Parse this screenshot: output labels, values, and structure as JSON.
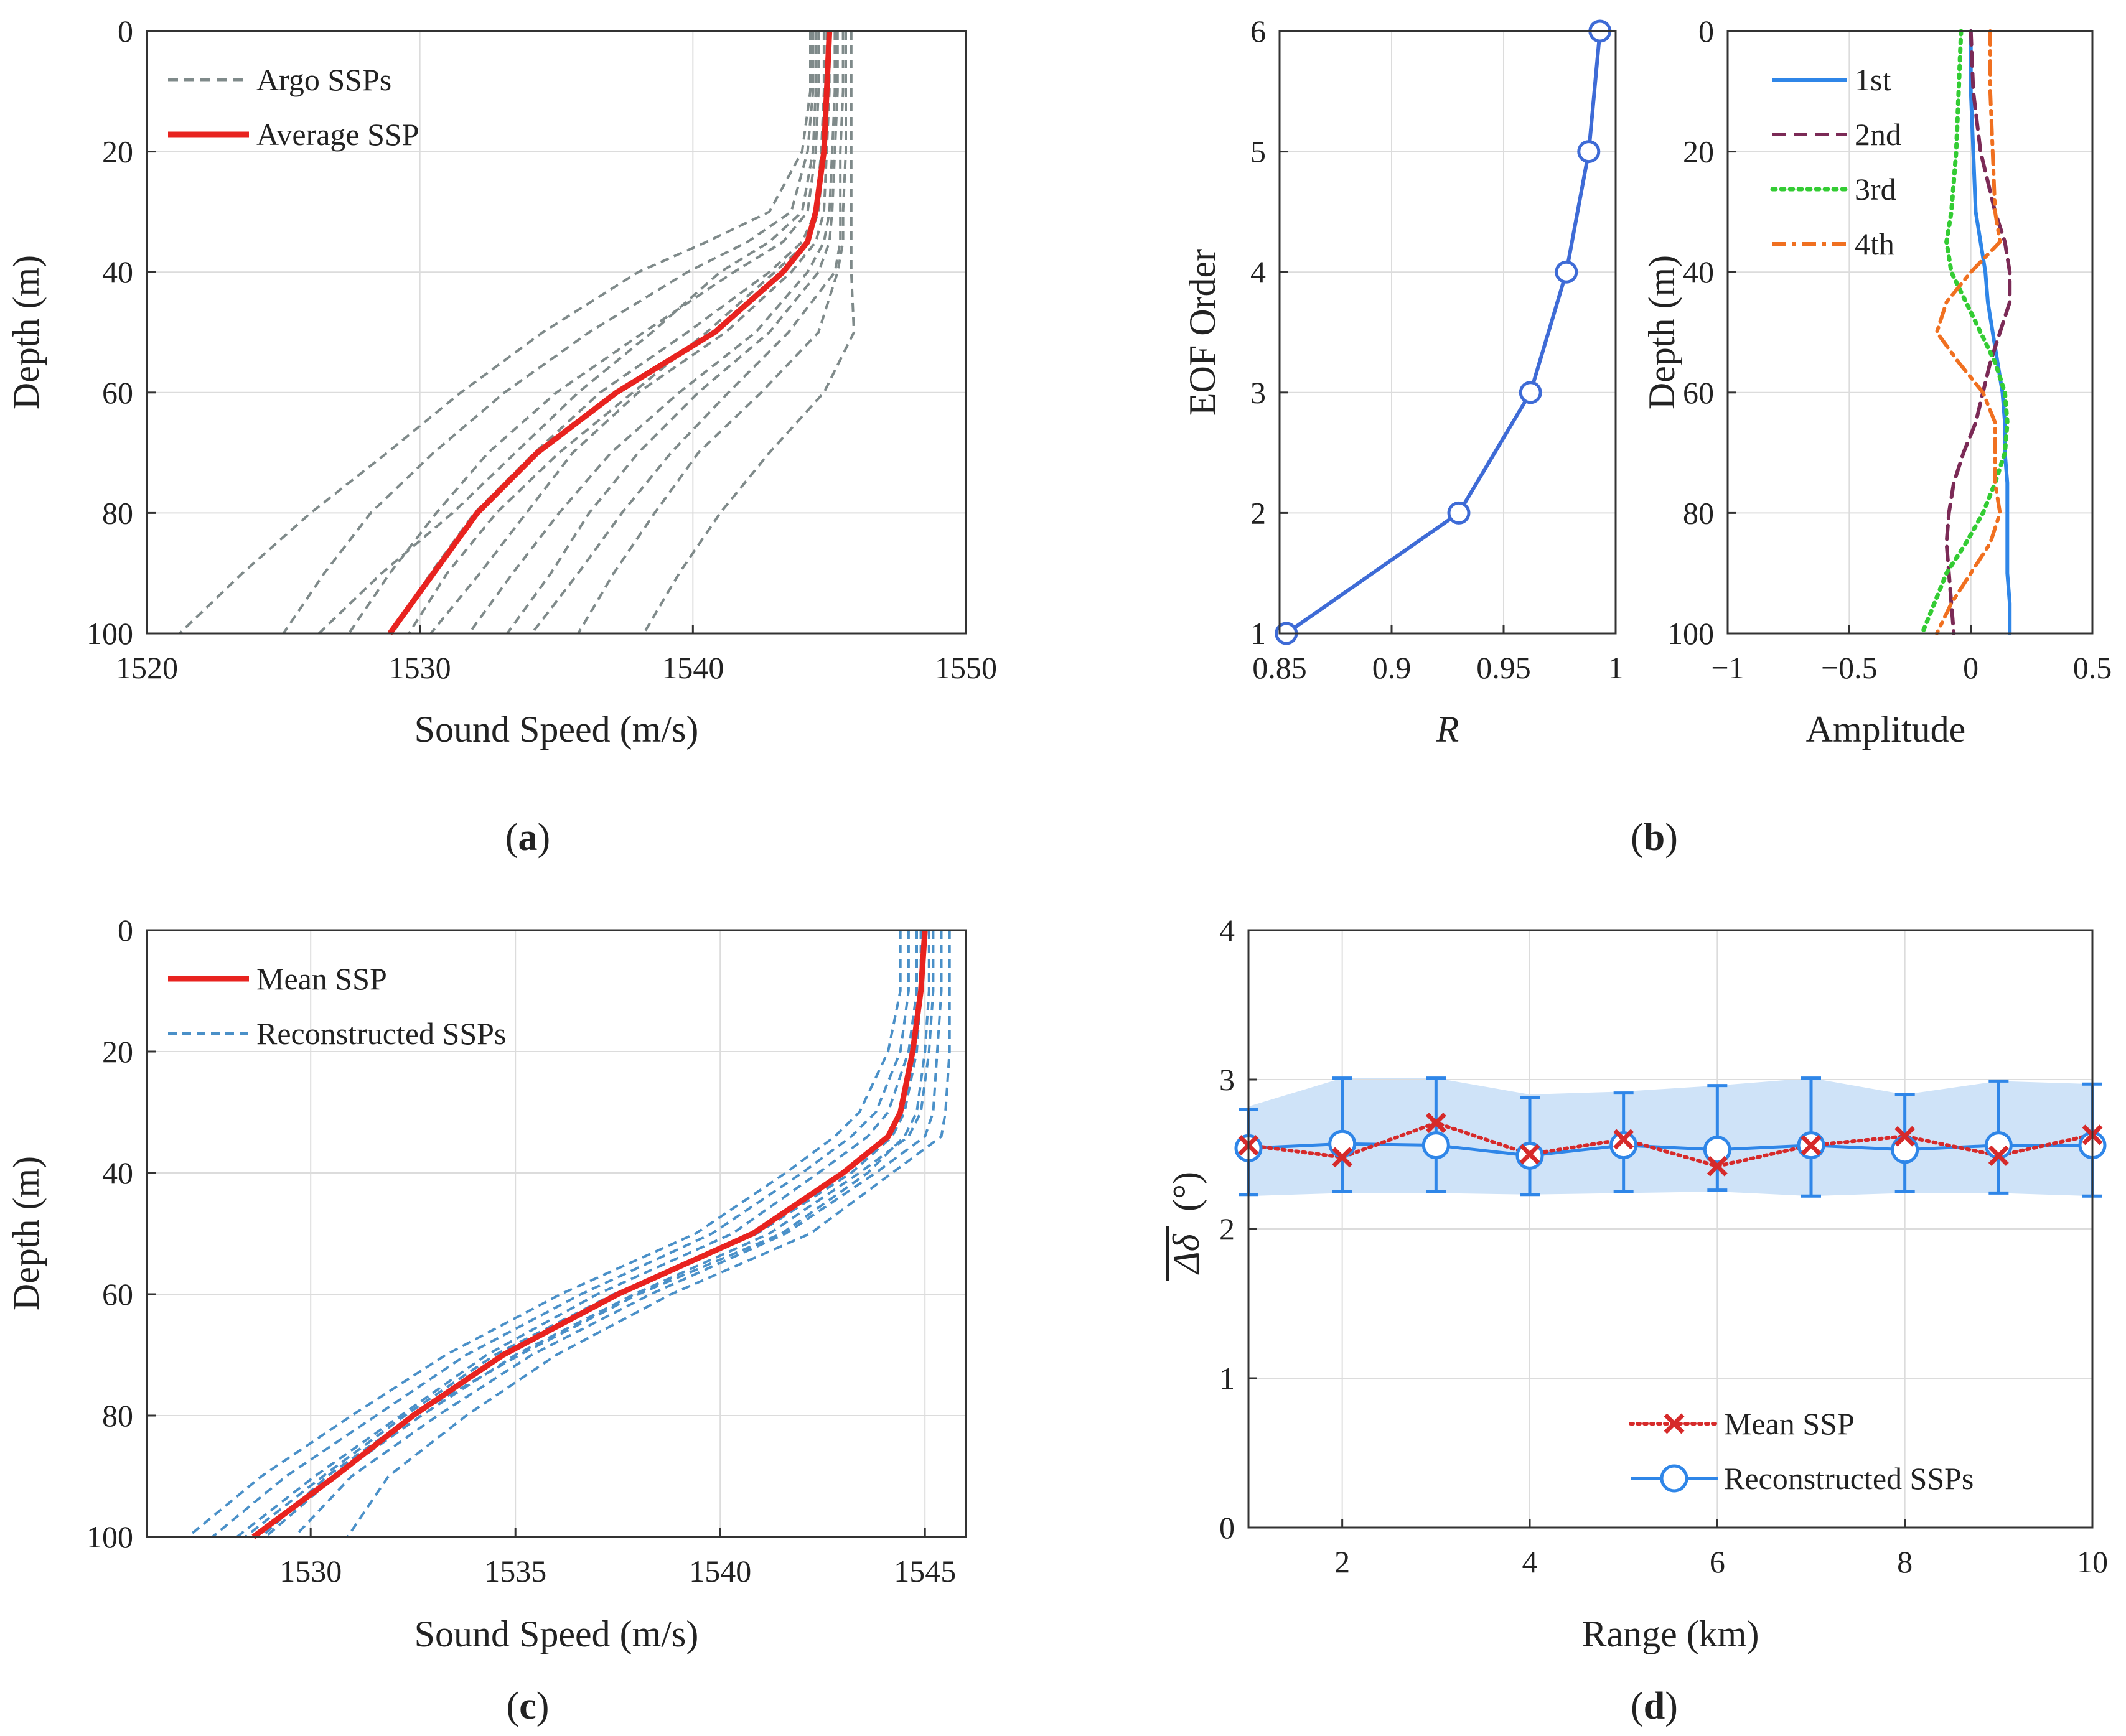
{
  "colors": {
    "argo": "#7f8a8a",
    "average": "#e8231f",
    "recon": "#4a90c8",
    "eofR": "#3e6bd6",
    "eof1": "#2f86e8",
    "eof2": "#7b2a56",
    "eof3": "#33cc33",
    "eof4": "#f07020",
    "meanX": "#d62a2a",
    "reconD": "#2f86e8",
    "band": "#cfe3f8"
  },
  "chart_data": [
    {
      "id": "a",
      "type": "line",
      "panel_label": "a",
      "xlabel": "Sound Speed (m/s)",
      "ylabel": "Depth (m)",
      "xlim": [
        1520,
        1550
      ],
      "ylim": [
        0,
        100
      ],
      "y_reversed": true,
      "grid": true,
      "xticks": [
        1520,
        1530,
        1540,
        1550
      ],
      "yticks": [
        0,
        20,
        40,
        60,
        80,
        100
      ],
      "legend": [
        "Argo SSPs",
        "Average SSP"
      ],
      "depth": [
        0,
        10,
        20,
        30,
        35,
        40,
        50,
        60,
        70,
        80,
        90,
        100
      ],
      "series": [
        {
          "name": "Average SSP",
          "values": [
            1545.0,
            1544.9,
            1544.8,
            1544.5,
            1544.2,
            1543.3,
            1540.8,
            1537.2,
            1534.3,
            1532.1,
            1530.5,
            1528.9
          ]
        },
        {
          "name": "Argo SSPs",
          "values": [
            1545.8,
            1545.8,
            1545.8,
            1545.8,
            1545.8,
            1545.8,
            1545.9,
            1544.8,
            1542.8,
            1541.0,
            1539.5,
            1538.2
          ]
        },
        {
          "name": "Argo SSPs",
          "values": [
            1545.5,
            1545.5,
            1545.4,
            1545.4,
            1545.4,
            1545.2,
            1543.5,
            1541.3,
            1539.2,
            1537.4,
            1535.8,
            1534.1
          ]
        },
        {
          "name": "Argo SSPs",
          "values": [
            1545.2,
            1545.2,
            1545.1,
            1545.0,
            1544.8,
            1544.2,
            1542.3,
            1539.5,
            1537.0,
            1535.1,
            1533.4,
            1531.8
          ]
        },
        {
          "name": "Argo SSPs",
          "values": [
            1544.8,
            1544.8,
            1544.7,
            1544.5,
            1544.0,
            1542.8,
            1539.8,
            1536.6,
            1534.2,
            1532.0,
            1530.4,
            1529.0
          ]
        },
        {
          "name": "Argo SSPs",
          "values": [
            1544.6,
            1544.6,
            1544.5,
            1544.2,
            1543.3,
            1541.5,
            1538.2,
            1535.0,
            1532.5,
            1530.6,
            1528.9,
            1527.4
          ]
        },
        {
          "name": "Argo SSPs",
          "values": [
            1544.4,
            1544.4,
            1544.2,
            1543.6,
            1542.0,
            1539.8,
            1536.2,
            1533.1,
            1530.5,
            1528.2,
            1526.5,
            1525.0
          ]
        },
        {
          "name": "Argo SSPs",
          "values": [
            1544.3,
            1544.3,
            1544.0,
            1542.8,
            1540.5,
            1538.0,
            1534.5,
            1531.5,
            1528.8,
            1526.0,
            1523.5,
            1521.2
          ]
        },
        {
          "name": "Argo SSPs",
          "values": [
            1544.5,
            1544.5,
            1544.4,
            1544.0,
            1542.8,
            1541.0,
            1538.5,
            1535.8,
            1533.5,
            1531.2,
            1528.6,
            1526.3
          ]
        },
        {
          "name": "Argo SSPs",
          "values": [
            1545.0,
            1545.0,
            1544.9,
            1544.8,
            1544.5,
            1543.6,
            1541.2,
            1538.0,
            1535.6,
            1533.9,
            1532.2,
            1530.4
          ]
        },
        {
          "name": "Argo SSPs",
          "values": [
            1545.3,
            1545.3,
            1545.2,
            1545.1,
            1545.0,
            1544.6,
            1542.8,
            1540.2,
            1538.0,
            1536.2,
            1534.8,
            1533.2
          ]
        },
        {
          "name": "Argo SSPs",
          "values": [
            1544.9,
            1544.9,
            1544.8,
            1544.6,
            1544.2,
            1543.0,
            1540.5,
            1537.8,
            1535.1,
            1532.8,
            1531.0,
            1529.6
          ]
        },
        {
          "name": "Argo SSPs",
          "values": [
            1545.6,
            1545.6,
            1545.6,
            1545.5,
            1545.5,
            1545.3,
            1544.6,
            1542.5,
            1540.2,
            1538.6,
            1537.1,
            1535.8
          ]
        }
      ]
    },
    {
      "id": "b1",
      "type": "line",
      "panel_label": "b",
      "xlabel": "R",
      "ylabel": "EOF Order",
      "xlim": [
        0.85,
        1
      ],
      "ylim": [
        1,
        6
      ],
      "grid": true,
      "xticks": [
        0.85,
        0.9,
        0.95,
        1
      ],
      "xtick_labels": [
        "0.85",
        "0.9",
        "0.95",
        "1"
      ],
      "yticks": [
        1,
        2,
        3,
        4,
        5,
        6
      ],
      "x": [
        0.853,
        0.93,
        0.962,
        0.978,
        0.988,
        0.993
      ],
      "y": [
        1,
        2,
        3,
        4,
        5,
        6
      ]
    },
    {
      "id": "b2",
      "type": "line",
      "panel_label": "b",
      "xlabel": "Amplitude",
      "ylabel": "Depth (m)",
      "xlim": [
        -1,
        0.5
      ],
      "ylim": [
        0,
        100
      ],
      "y_reversed": true,
      "grid": true,
      "xticks": [
        -1,
        -0.5,
        0,
        0.5
      ],
      "xtick_labels": [
        "−1",
        "−0.5",
        "0",
        "0.5"
      ],
      "yticks": [
        0,
        20,
        40,
        60,
        80,
        100
      ],
      "legend": [
        "1st",
        "2nd",
        "3rd",
        "4th"
      ],
      "depth": [
        0,
        10,
        20,
        30,
        35,
        40,
        45,
        50,
        55,
        60,
        65,
        70,
        75,
        80,
        85,
        90,
        95,
        100
      ],
      "series": [
        {
          "name": "1st",
          "values": [
            0.0,
            0.0,
            0.01,
            0.02,
            0.04,
            0.06,
            0.07,
            0.09,
            0.11,
            0.13,
            0.14,
            0.14,
            0.15,
            0.15,
            0.15,
            0.15,
            0.16,
            0.16
          ]
        },
        {
          "name": "2nd",
          "values": [
            0.0,
            0.01,
            0.04,
            0.1,
            0.14,
            0.16,
            0.16,
            0.12,
            0.08,
            0.05,
            0.02,
            -0.03,
            -0.07,
            -0.09,
            -0.1,
            -0.09,
            -0.08,
            -0.07
          ]
        },
        {
          "name": "3rd",
          "values": [
            -0.04,
            -0.05,
            -0.06,
            -0.08,
            -0.1,
            -0.08,
            -0.02,
            0.04,
            0.1,
            0.14,
            0.15,
            0.14,
            0.1,
            0.05,
            -0.02,
            -0.1,
            -0.15,
            -0.2
          ]
        },
        {
          "name": "4th",
          "values": [
            0.08,
            0.08,
            0.09,
            0.1,
            0.12,
            0.0,
            -0.1,
            -0.14,
            -0.05,
            0.05,
            0.1,
            0.1,
            0.1,
            0.12,
            0.08,
            0.0,
            -0.08,
            -0.14
          ]
        }
      ]
    },
    {
      "id": "c",
      "type": "line",
      "panel_label": "c",
      "xlabel": "Sound Speed (m/s)",
      "ylabel": "Depth (m)",
      "xlim": [
        1526,
        1546
      ],
      "ylim": [
        0,
        100
      ],
      "y_reversed": true,
      "grid": true,
      "xticks": [
        1530,
        1535,
        1540,
        1545
      ],
      "yticks": [
        0,
        20,
        40,
        60,
        80,
        100
      ],
      "legend": [
        "Mean SSP",
        "Reconstructed SSPs"
      ],
      "depth": [
        0,
        10,
        20,
        30,
        34,
        40,
        50,
        60,
        70,
        80,
        90,
        100
      ],
      "series": [
        {
          "name": "Mean SSP",
          "values": [
            1545.0,
            1544.9,
            1544.7,
            1544.4,
            1544.1,
            1543.0,
            1540.8,
            1537.5,
            1534.7,
            1532.5,
            1530.6,
            1528.6
          ]
        },
        {
          "name": "Reconstructed SSPs",
          "values": [
            1545.6,
            1545.6,
            1545.6,
            1545.5,
            1545.4,
            1544.2,
            1542.2,
            1538.8,
            1536.0,
            1533.8,
            1531.9,
            1530.9
          ]
        },
        {
          "name": "Reconstructed SSPs",
          "values": [
            1545.4,
            1545.4,
            1545.3,
            1545.2,
            1545.0,
            1543.8,
            1541.6,
            1538.3,
            1535.4,
            1533.1,
            1531.0,
            1529.6
          ]
        },
        {
          "name": "Reconstructed SSPs",
          "values": [
            1545.2,
            1545.2,
            1545.1,
            1544.9,
            1544.6,
            1543.4,
            1541.2,
            1537.9,
            1535.0,
            1532.7,
            1530.6,
            1528.9
          ]
        },
        {
          "name": "Reconstructed SSPs",
          "values": [
            1544.8,
            1544.8,
            1544.6,
            1544.1,
            1543.6,
            1542.4,
            1540.3,
            1537.0,
            1534.3,
            1532.2,
            1530.1,
            1528.2
          ]
        },
        {
          "name": "Reconstructed SSPs",
          "values": [
            1544.6,
            1544.6,
            1544.4,
            1543.8,
            1543.2,
            1542.0,
            1539.8,
            1536.6,
            1533.8,
            1531.6,
            1529.4,
            1527.6
          ]
        },
        {
          "name": "Reconstructed SSPs",
          "values": [
            1544.4,
            1544.4,
            1544.1,
            1543.4,
            1542.8,
            1541.6,
            1539.4,
            1536.1,
            1533.3,
            1531.0,
            1528.8,
            1527.0
          ]
        },
        {
          "name": "Reconstructed SSPs",
          "values": [
            1545.1,
            1545.1,
            1545.0,
            1544.8,
            1544.5,
            1543.6,
            1541.5,
            1538.0,
            1535.1,
            1532.5,
            1530.4,
            1528.8
          ]
        },
        {
          "name": "Reconstructed SSPs",
          "values": [
            1544.9,
            1544.9,
            1544.8,
            1544.5,
            1544.2,
            1543.2,
            1540.9,
            1537.4,
            1534.5,
            1532.3,
            1530.3,
            1528.4
          ]
        }
      ]
    },
    {
      "id": "d",
      "type": "line",
      "panel_label": "d",
      "xlabel": "Range (km)",
      "ylabel": "Δδ̄ (°)",
      "ylabel_main": "Δδ",
      "ylabel_unit": "(°)",
      "xlim": [
        1,
        10
      ],
      "ylim": [
        0,
        4
      ],
      "grid": true,
      "xticks": [
        2,
        4,
        6,
        8,
        10
      ],
      "yticks": [
        0,
        1,
        2,
        3,
        4
      ],
      "legend": [
        "Mean SSP",
        "Reconstructed SSPs"
      ],
      "x": [
        1,
        2,
        3,
        4,
        5,
        6,
        7,
        8,
        9,
        10
      ],
      "series": [
        {
          "name": "Mean SSP",
          "values": [
            2.56,
            2.48,
            2.71,
            2.5,
            2.6,
            2.42,
            2.56,
            2.62,
            2.49,
            2.63
          ]
        },
        {
          "name": "Reconstructed SSPs",
          "values": [
            2.54,
            2.57,
            2.56,
            2.49,
            2.56,
            2.53,
            2.56,
            2.53,
            2.56,
            2.56
          ]
        }
      ],
      "error_bars": {
        "series": "Reconstructed SSPs",
        "lower": [
          2.23,
          2.25,
          2.25,
          2.23,
          2.25,
          2.26,
          2.22,
          2.25,
          2.24,
          2.22
        ],
        "upper": [
          2.8,
          3.01,
          3.01,
          2.88,
          2.91,
          2.96,
          3.01,
          2.9,
          2.99,
          2.97
        ]
      },
      "band": {
        "lower": [
          2.22,
          2.24,
          2.24,
          2.23,
          2.24,
          2.25,
          2.22,
          2.24,
          2.24,
          2.22
        ],
        "upper": [
          2.82,
          3.01,
          3.01,
          2.9,
          2.92,
          2.96,
          3.01,
          2.9,
          2.99,
          2.97
        ]
      }
    }
  ]
}
